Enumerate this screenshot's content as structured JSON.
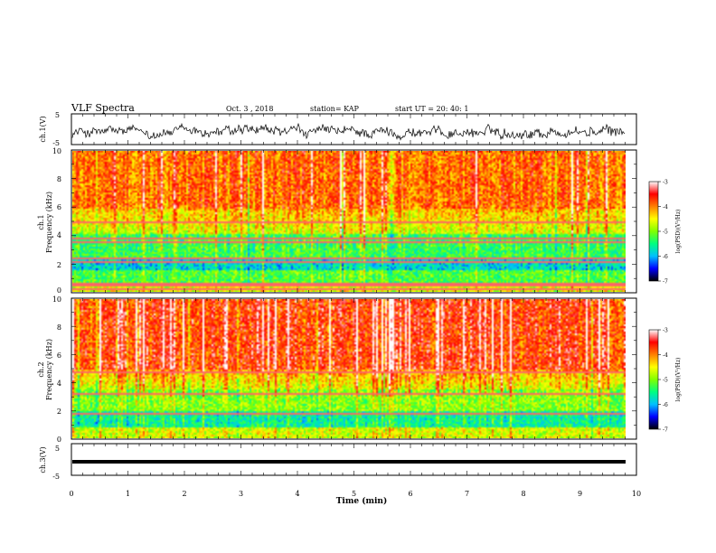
{
  "header": {
    "title": "VLF Spectra",
    "date": "Oct. 3 , 2018",
    "station": "station= KAP",
    "start": "start UT = 20: 40: 1"
  },
  "chart_data": [
    {
      "type": "line",
      "name": "ch1-waveform",
      "ylabel": "ch.1(V)",
      "ylim": [
        -5,
        5
      ],
      "yticks": [
        "5",
        "-5"
      ],
      "xlim": [
        0,
        10
      ],
      "trace": "noisy waveform, roughly between -3.5 and 1.5 V"
    },
    {
      "type": "heatmap",
      "name": "ch1-spectrogram",
      "ylabel": "ch.1\nFrequency (kHz)",
      "ylim": [
        0,
        10
      ],
      "yticks": [
        "0",
        "2",
        "4",
        "6",
        "8",
        "10"
      ],
      "xlim": [
        0,
        9.8
      ],
      "colorbar": {
        "label": "log(PSD)(V²/Hz)",
        "range": [
          -7,
          -3
        ],
        "ticks": [
          "-3",
          "-4",
          "-5",
          "-6",
          "-7"
        ],
        "colors": [
          "#000000",
          "#0000ff",
          "#00c0ff",
          "#00ff80",
          "#80ff00",
          "#ffff00",
          "#ff8000",
          "#ff0000",
          "#ffffff"
        ]
      },
      "lines_khz": [
        0.2,
        0.5,
        0.65,
        2.2,
        2.4,
        3.6,
        3.8,
        5.0
      ]
    },
    {
      "type": "heatmap",
      "name": "ch2-spectrogram",
      "ylabel": "ch.2\nFrequency (kHz)",
      "ylim": [
        0,
        10
      ],
      "yticks": [
        "0",
        "2",
        "4",
        "6",
        "8",
        "10"
      ],
      "xlim": [
        0,
        9.8
      ],
      "colorbar": {
        "label": "log(PSD)(V²/Hz)",
        "range": [
          -7,
          -3
        ],
        "ticks": [
          "-3",
          "-4",
          "-5",
          "-6",
          "-7"
        ],
        "colors": [
          "#000000",
          "#0000ff",
          "#00c0ff",
          "#00ff80",
          "#80ff00",
          "#ffff00",
          "#ff8000",
          "#ff0000",
          "#ffffff"
        ]
      },
      "lines_khz": [
        1.8,
        3.2,
        4.8
      ]
    },
    {
      "type": "line",
      "name": "ch3-waveform",
      "ylabel": "ch.3(V)",
      "ylim": [
        -5,
        5
      ],
      "yticks": [
        "5",
        "-5"
      ],
      "xlim": [
        0,
        10
      ],
      "xlabel": "Time (min)",
      "xticks": [
        "0",
        "1",
        "2",
        "3",
        "4",
        "5",
        "6",
        "7",
        "8",
        "9",
        "10"
      ],
      "constant_v": 0
    }
  ]
}
